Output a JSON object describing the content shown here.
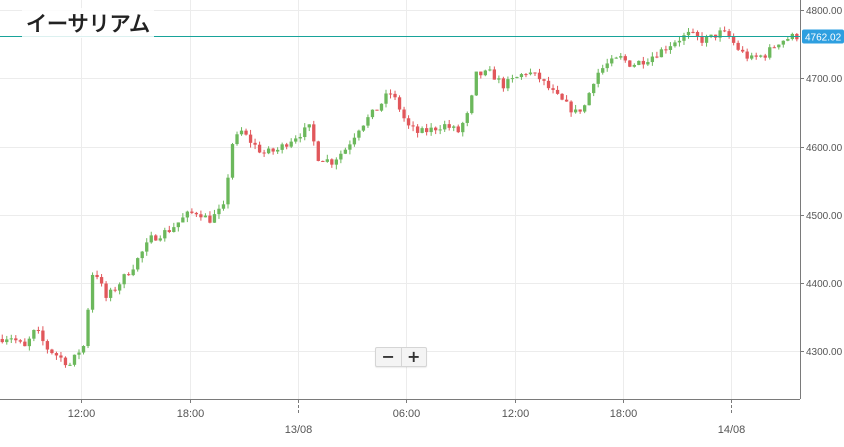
{
  "chart_data": {
    "type": "candlestick",
    "title": "イーサリアム",
    "xlabel": "",
    "ylabel": "",
    "ylim": [
      4230,
      4815
    ],
    "y_ticks": [
      4300,
      4400,
      4500,
      4600,
      4700,
      4800
    ],
    "y_tick_labels": [
      "4300.00",
      "4400.00",
      "4500.00",
      "4600.00",
      "4700.00",
      "4800.00"
    ],
    "x_ticks": [
      {
        "label": "12:00",
        "t": 12
      },
      {
        "label": "18:00",
        "t": 18
      },
      {
        "label": "13/08",
        "t": 24,
        "day": true
      },
      {
        "label": "06:00",
        "t": 30
      },
      {
        "label": "12:00",
        "t": 36
      },
      {
        "label": "18:00",
        "t": 42
      },
      {
        "label": "14/08",
        "t": 48,
        "day": true
      }
    ],
    "x_range": [
      7.5,
      51.8
    ],
    "current_price": 4762.02,
    "current_price_label": "4762.02",
    "grid": true,
    "colors": {
      "up": "#6cb85c",
      "down": "#e1575b",
      "price_line": "#18a39a",
      "price_badge": "#2e9fe0",
      "grid": "#ececec",
      "axis": "#7a7a7a",
      "tick_text": "#555555"
    },
    "keypoints": [
      [
        7.5,
        4318
      ],
      [
        8.2,
        4322
      ],
      [
        9.0,
        4305
      ],
      [
        9.6,
        4332
      ],
      [
        10.2,
        4305
      ],
      [
        11.0,
        4290
      ],
      [
        11.5,
        4280
      ],
      [
        12.0,
        4300
      ],
      [
        12.4,
        4312
      ],
      [
        12.6,
        4415
      ],
      [
        13.0,
        4412
      ],
      [
        13.5,
        4378
      ],
      [
        14.0,
        4392
      ],
      [
        15.0,
        4425
      ],
      [
        16.0,
        4465
      ],
      [
        17.0,
        4478
      ],
      [
        18.0,
        4500
      ],
      [
        18.6,
        4505
      ],
      [
        19.2,
        4492
      ],
      [
        20.0,
        4510
      ],
      [
        20.5,
        4605
      ],
      [
        21.0,
        4622
      ],
      [
        21.6,
        4605
      ],
      [
        22.2,
        4590
      ],
      [
        23.0,
        4595
      ],
      [
        23.8,
        4612
      ],
      [
        24.8,
        4628
      ],
      [
        25.2,
        4585
      ],
      [
        26.0,
        4578
      ],
      [
        26.8,
        4598
      ],
      [
        27.5,
        4628
      ],
      [
        28.5,
        4655
      ],
      [
        29.2,
        4680
      ],
      [
        29.6,
        4665
      ],
      [
        30.2,
        4630
      ],
      [
        30.8,
        4620
      ],
      [
        31.5,
        4625
      ],
      [
        32.2,
        4632
      ],
      [
        33.0,
        4622
      ],
      [
        33.6,
        4650
      ],
      [
        34.0,
        4705
      ],
      [
        34.8,
        4708
      ],
      [
        35.5,
        4690
      ],
      [
        36.2,
        4700
      ],
      [
        36.8,
        4710
      ],
      [
        37.5,
        4700
      ],
      [
        38.2,
        4680
      ],
      [
        38.8,
        4665
      ],
      [
        39.5,
        4650
      ],
      [
        40.0,
        4660
      ],
      [
        40.6,
        4705
      ],
      [
        41.2,
        4720
      ],
      [
        42.0,
        4730
      ],
      [
        42.6,
        4720
      ],
      [
        43.4,
        4728
      ],
      [
        44.2,
        4740
      ],
      [
        45.0,
        4755
      ],
      [
        45.8,
        4765
      ],
      [
        46.6,
        4755
      ],
      [
        47.6,
        4768
      ],
      [
        48.0,
        4760
      ],
      [
        48.6,
        4740
      ],
      [
        49.2,
        4728
      ],
      [
        50.0,
        4735
      ],
      [
        50.8,
        4755
      ],
      [
        51.6,
        4762
      ]
    ],
    "candle_interval_hours": 0.25,
    "seed": 7
  },
  "ui": {
    "zoom_out_label": "−",
    "zoom_in_label": "+"
  }
}
